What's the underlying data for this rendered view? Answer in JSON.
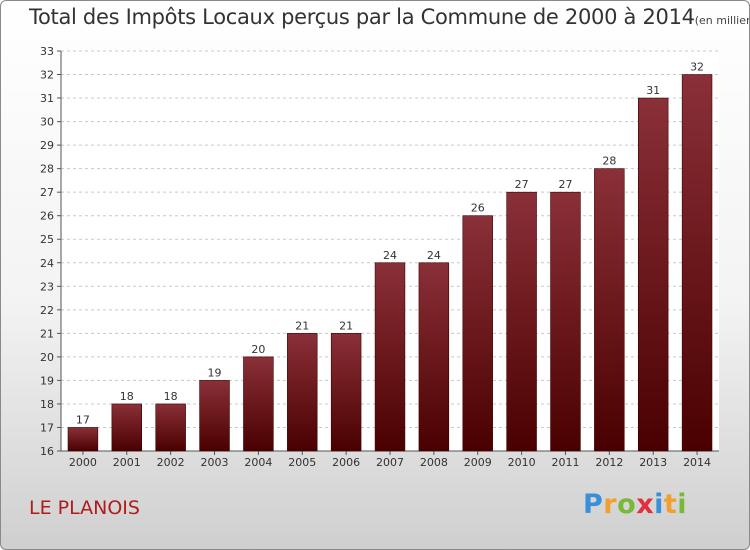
{
  "title": "Total des Impôts Locaux perçus par la Commune de 2000 à 2014",
  "title_unit": "(en milliers d'€)",
  "commune": "LE PLANOIS",
  "brand": [
    "P",
    "r",
    "o",
    "x",
    "i",
    "t",
    "i"
  ],
  "brand_colors": [
    "#3a8fd8",
    "#f0a030",
    "#7ab83a",
    "#e0303a",
    "#3a8fd8",
    "#f0a030",
    "#7ab83a"
  ],
  "colors": {
    "bar_top": "#8a3038",
    "bar_bottom": "#4a0000",
    "grid": "#c8c8c8",
    "text": "#333333"
  },
  "chart_data": {
    "type": "bar",
    "categories": [
      "2000",
      "2001",
      "2002",
      "2003",
      "2004",
      "2005",
      "2006",
      "2007",
      "2008",
      "2009",
      "2010",
      "2011",
      "2012",
      "2013",
      "2014"
    ],
    "values": [
      17,
      18,
      18,
      19,
      20,
      21,
      21,
      24,
      24,
      26,
      27,
      27,
      28,
      31,
      32
    ],
    "data_labels": [
      "17",
      "18",
      "18",
      "19",
      "20",
      "21",
      "21",
      "24",
      "24",
      "26",
      "27",
      "27",
      "28",
      "31",
      "32"
    ],
    "ylim": [
      16,
      33
    ],
    "yticks": [
      16,
      17,
      18,
      19,
      20,
      21,
      22,
      23,
      24,
      25,
      26,
      27,
      28,
      29,
      30,
      31,
      32,
      33
    ],
    "grid": true
  }
}
